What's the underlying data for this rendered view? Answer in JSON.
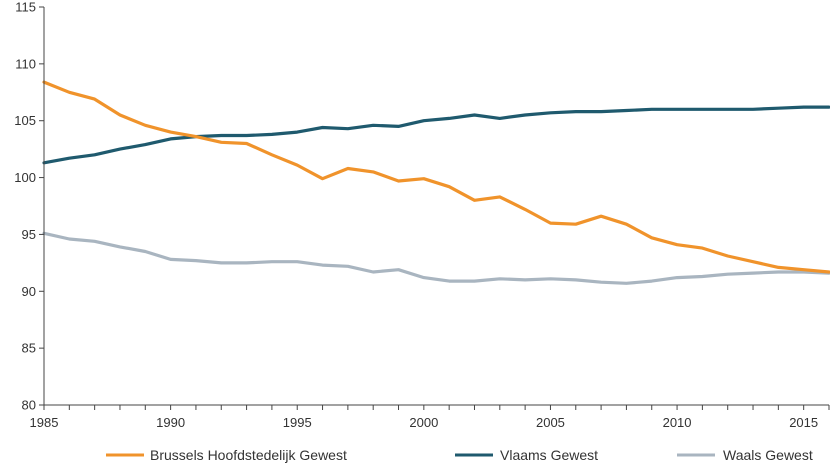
{
  "chart_data": {
    "type": "line",
    "title": "",
    "xlabel": "",
    "ylabel": "",
    "xlim": [
      1985,
      2016
    ],
    "ylim": [
      80,
      115
    ],
    "x_ticks": [
      1985,
      1990,
      1995,
      2000,
      2005,
      2010,
      2015
    ],
    "y_ticks": [
      80,
      85,
      90,
      95,
      100,
      105,
      110,
      115
    ],
    "grid": false,
    "legend_position": "bottom",
    "x": [
      1985,
      1986,
      1987,
      1988,
      1989,
      1990,
      1991,
      1992,
      1993,
      1994,
      1995,
      1996,
      1997,
      1998,
      1999,
      2000,
      2001,
      2002,
      2003,
      2004,
      2005,
      2006,
      2007,
      2008,
      2009,
      2010,
      2011,
      2012,
      2013,
      2014,
      2015,
      2016
    ],
    "series": [
      {
        "name": "Brussels Hoofdstedelijk Gewest",
        "color": "#f0932b",
        "values": [
          108.4,
          107.5,
          106.9,
          105.5,
          104.6,
          104.0,
          103.6,
          103.1,
          103.0,
          102.0,
          101.1,
          99.9,
          100.8,
          100.5,
          99.7,
          99.9,
          99.2,
          98.0,
          98.3,
          97.2,
          96.0,
          95.9,
          96.6,
          95.9,
          94.7,
          94.1,
          93.8,
          93.1,
          92.6,
          92.1,
          91.9,
          91.7
        ]
      },
      {
        "name": "Vlaams Gewest",
        "color": "#1f5a6e",
        "values": [
          101.3,
          101.7,
          102.0,
          102.5,
          102.9,
          103.4,
          103.6,
          103.7,
          103.7,
          103.8,
          104.0,
          104.4,
          104.3,
          104.6,
          104.5,
          105.0,
          105.2,
          105.5,
          105.2,
          105.5,
          105.7,
          105.8,
          105.8,
          105.9,
          106.0,
          106.0,
          106.0,
          106.0,
          106.0,
          106.1,
          106.2,
          106.2
        ]
      },
      {
        "name": "Waals Gewest",
        "color": "#a9b5c0",
        "values": [
          95.1,
          94.6,
          94.4,
          93.9,
          93.5,
          92.8,
          92.7,
          92.5,
          92.5,
          92.6,
          92.6,
          92.3,
          92.2,
          91.7,
          91.9,
          91.2,
          90.9,
          90.9,
          91.1,
          91.0,
          91.1,
          91.0,
          90.8,
          90.7,
          90.9,
          91.2,
          91.3,
          91.5,
          91.6,
          91.7,
          91.7,
          91.6
        ]
      }
    ]
  }
}
